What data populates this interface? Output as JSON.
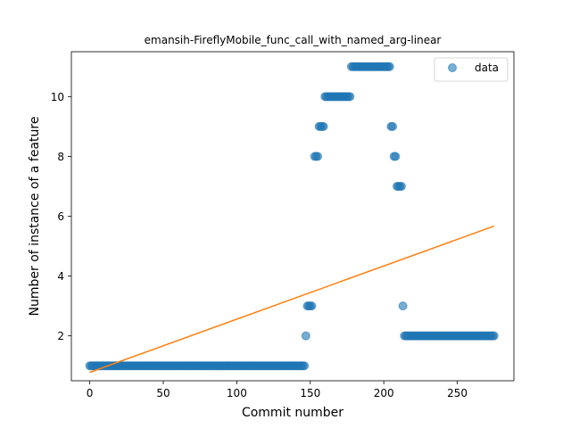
{
  "chart_data": {
    "type": "scatter",
    "title": "emansih-FireflyMobile_func_call_with_named_arg-linear",
    "xlabel": "Commit number",
    "ylabel": "Number of instance of a feature",
    "xlim": [
      -12.5,
      288.5
    ],
    "ylim": [
      0.5,
      11.5
    ],
    "xticks": [
      0,
      50,
      100,
      150,
      200,
      250
    ],
    "yticks": [
      2,
      4,
      6,
      8,
      10
    ],
    "grid": false,
    "legend": {
      "position": "top-right",
      "entries": [
        "data"
      ]
    },
    "colors": {
      "data": "#1f77b4",
      "fit": "#ff7f0e"
    },
    "series": [
      {
        "name": "data",
        "kind": "scatter",
        "runs": [
          {
            "x_start": 0,
            "x_end": 146,
            "y": 1
          },
          {
            "x_start": 147,
            "x_end": 147,
            "y": 2
          },
          {
            "x_start": 148,
            "x_end": 151,
            "y": 3
          },
          {
            "x_start": 153,
            "x_end": 155,
            "y": 8
          },
          {
            "x_start": 156,
            "x_end": 159,
            "y": 9
          },
          {
            "x_start": 160,
            "x_end": 177,
            "y": 10
          },
          {
            "x_start": 178,
            "x_end": 204,
            "y": 11
          },
          {
            "x_start": 205,
            "x_end": 206,
            "y": 9
          },
          {
            "x_start": 207,
            "x_end": 208,
            "y": 8
          },
          {
            "x_start": 209,
            "x_end": 212,
            "y": 7
          },
          {
            "x_start": 213,
            "x_end": 213,
            "y": 3
          },
          {
            "x_start": 214,
            "x_end": 275,
            "y": 2
          }
        ]
      },
      {
        "kind": "line",
        "x": [
          0,
          275
        ],
        "y": [
          0.78,
          5.67
        ]
      }
    ]
  }
}
